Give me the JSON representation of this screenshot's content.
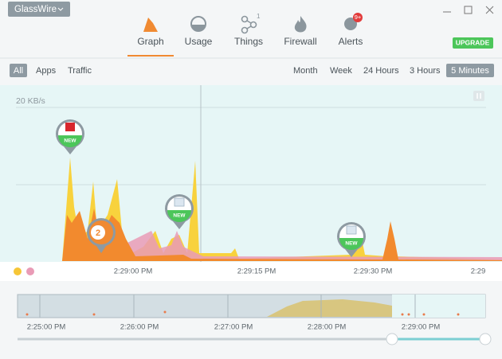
{
  "app": {
    "name": "GlassWire"
  },
  "tabs": [
    {
      "label": "Graph"
    },
    {
      "label": "Usage"
    },
    {
      "label": "Things",
      "badge": "1"
    },
    {
      "label": "Firewall"
    },
    {
      "label": "Alerts",
      "badge": "9+"
    }
  ],
  "upgrade": "UPGRADE",
  "filters": [
    "All",
    "Apps",
    "Traffic"
  ],
  "ranges": [
    "Month",
    "Week",
    "24 Hours",
    "3 Hours",
    "5 Minutes"
  ],
  "graph": {
    "scale_label": "20 KB/s",
    "time_labels": [
      "2:29:00 PM",
      "2:29:15 PM",
      "2:29:30 PM",
      "2:29"
    ],
    "markers": [
      "NEW",
      "NEW",
      "NEW"
    ],
    "count_badge": "2"
  },
  "timeline": {
    "time_labels": [
      "2:25:00 PM",
      "2:26:00 PM",
      "2:27:00 PM",
      "2:28:00 PM",
      "2:29:00 PM"
    ]
  }
}
